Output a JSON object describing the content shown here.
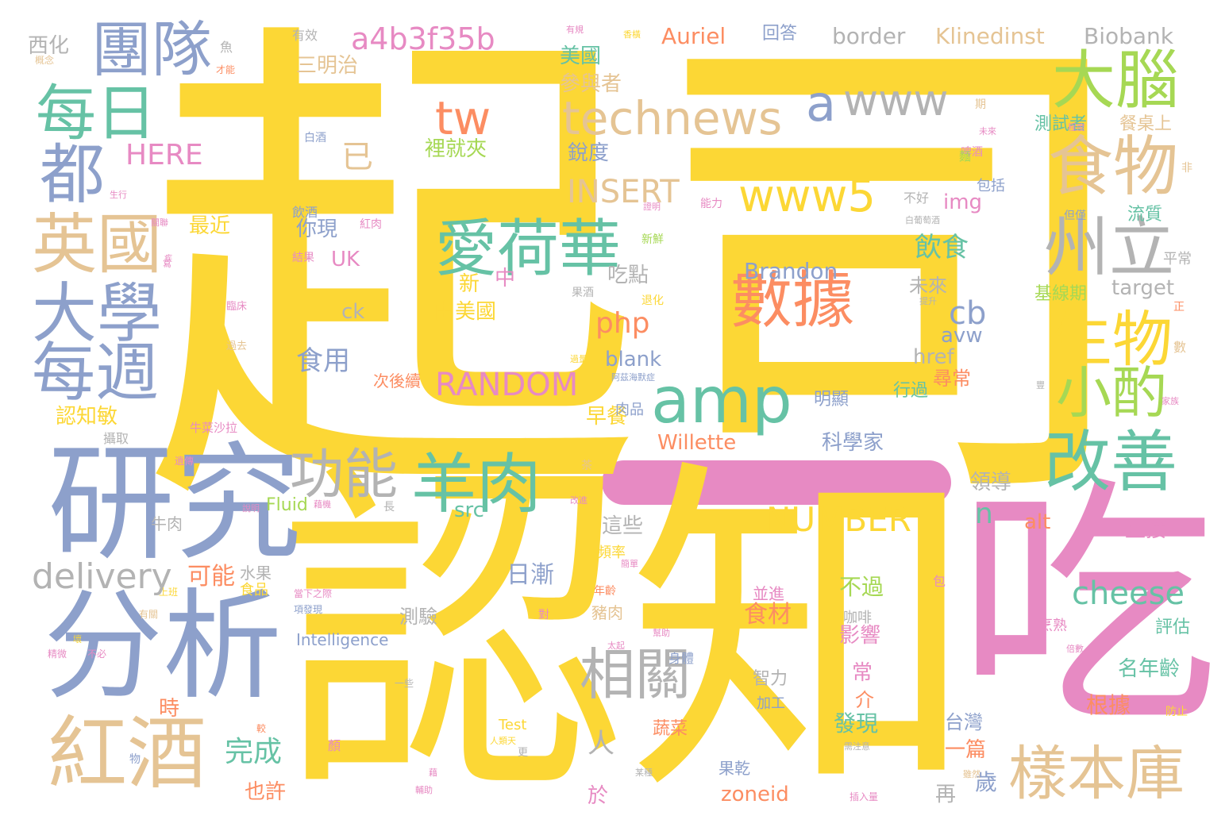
{
  "palette": {
    "yellow": "#fcd735",
    "blue": "#8da0cb",
    "pink": "#e78ac3",
    "green": "#66c2a5",
    "lime": "#a6d854",
    "tan": "#e5c494",
    "gray": "#b3b3b3",
    "orange": "#fc8d62"
  },
  "words": [
    {
      "text": "起司",
      "color": "yellow"
    },
    {
      "text": "認知",
      "color": "yellow"
    },
    {
      "text": "吃",
      "color": "pink"
    },
    {
      "text": "研究",
      "color": "blue"
    },
    {
      "text": "分析",
      "color": "blue"
    },
    {
      "text": "團隊",
      "color": "blue"
    },
    {
      "text": "每日",
      "color": "green"
    },
    {
      "text": "都",
      "color": "blue"
    },
    {
      "text": "英國",
      "color": "tan"
    },
    {
      "text": "大學",
      "color": "blue"
    },
    {
      "text": "每週",
      "color": "blue"
    },
    {
      "text": "紅酒",
      "color": "tan"
    },
    {
      "text": "amp",
      "color": "green"
    },
    {
      "text": "數據",
      "color": "orange"
    },
    {
      "text": "愛荷華",
      "color": "green"
    },
    {
      "text": "羊肉",
      "color": "green"
    },
    {
      "text": "功能",
      "color": "gray"
    },
    {
      "text": "相關",
      "color": "gray"
    },
    {
      "text": "technews",
      "color": "tan"
    },
    {
      "text": "www",
      "color": "gray"
    },
    {
      "text": "a",
      "color": "blue"
    },
    {
      "text": "www5",
      "color": "yellow"
    },
    {
      "text": "tw",
      "color": "orange"
    },
    {
      "text": "a4b3f35b",
      "color": "pink"
    },
    {
      "text": "大腦",
      "color": "lime"
    },
    {
      "text": "食物",
      "color": "tan"
    },
    {
      "text": "州立",
      "color": "gray"
    },
    {
      "text": "生物",
      "color": "yellow"
    },
    {
      "text": "小酌",
      "color": "lime"
    },
    {
      "text": "改善",
      "color": "green"
    },
    {
      "text": "樣本庫",
      "color": "tan"
    },
    {
      "text": "cheese",
      "color": "green"
    },
    {
      "text": "delivery",
      "color": "gray"
    },
    {
      "text": "NUMBER",
      "color": "yellow"
    },
    {
      "text": "RANDOM",
      "color": "pink"
    },
    {
      "text": "INSERT",
      "color": "tan"
    },
    {
      "text": "HERE",
      "color": "pink"
    },
    {
      "text": "php",
      "color": "orange"
    },
    {
      "text": "Brandon",
      "color": "blue"
    },
    {
      "text": "Willette",
      "color": "orange"
    },
    {
      "text": "Auriel",
      "color": "orange"
    },
    {
      "text": "border",
      "color": "gray"
    },
    {
      "text": "Klinedinst",
      "color": "tan"
    },
    {
      "text": "Biobank",
      "color": "gray"
    },
    {
      "text": "已",
      "color": "tan"
    },
    {
      "text": "cb",
      "color": "blue"
    },
    {
      "text": "n",
      "color": "green"
    },
    {
      "text": "img",
      "color": "pink"
    },
    {
      "text": "UK",
      "color": "pink"
    },
    {
      "text": "ck",
      "color": "gray"
    },
    {
      "text": "src",
      "color": "green"
    },
    {
      "text": "alt",
      "color": "orange"
    },
    {
      "text": "blank",
      "color": "blue"
    },
    {
      "text": "href",
      "color": "gray"
    },
    {
      "text": "avw",
      "color": "blue"
    },
    {
      "text": "target",
      "color": "gray"
    },
    {
      "text": "zoneid",
      "color": "orange"
    },
    {
      "text": "Fluid",
      "color": "lime"
    },
    {
      "text": "Intelligence",
      "color": "blue"
    },
    {
      "text": "Test",
      "color": "yellow"
    },
    {
      "text": "人",
      "color": "gray"
    },
    {
      "text": "三明治",
      "color": "tan"
    },
    {
      "text": "美國",
      "color": "green"
    },
    {
      "text": "參與者",
      "color": "tan"
    },
    {
      "text": "回答",
      "color": "blue"
    },
    {
      "text": "西化",
      "color": "gray"
    },
    {
      "text": "銳度",
      "color": "blue"
    },
    {
      "text": "裡就夾",
      "color": "lime"
    },
    {
      "text": "最近",
      "color": "yellow"
    },
    {
      "text": "你現",
      "color": "blue"
    },
    {
      "text": "飲食",
      "color": "green"
    },
    {
      "text": "吃點",
      "color": "gray"
    },
    {
      "text": "未來",
      "color": "gray"
    },
    {
      "text": "由美國",
      "color": "yellow"
    },
    {
      "text": "食用",
      "color": "blue"
    },
    {
      "text": "中",
      "color": "pink"
    },
    {
      "text": "新",
      "color": "yellow"
    },
    {
      "text": "測試者",
      "color": "green"
    },
    {
      "text": "餐桌上",
      "color": "tan"
    },
    {
      "text": "流質",
      "color": "green"
    },
    {
      "text": "基線期",
      "color": "lime"
    },
    {
      "text": "尋常",
      "color": "orange"
    },
    {
      "text": "行過",
      "color": "green"
    },
    {
      "text": "明顯",
      "color": "blue"
    },
    {
      "text": "科學家",
      "color": "blue"
    },
    {
      "text": "早餐",
      "color": "yellow"
    },
    {
      "text": "認知敏",
      "color": "yellow"
    },
    {
      "text": "可能",
      "color": "orange"
    },
    {
      "text": "日漸",
      "color": "blue"
    },
    {
      "text": "這些",
      "color": "gray"
    },
    {
      "text": "測驗",
      "color": "gray"
    },
    {
      "text": "領導",
      "color": "gray"
    },
    {
      "text": "直接",
      "color": "pink"
    },
    {
      "text": "名年齡",
      "color": "green"
    },
    {
      "text": "評估",
      "color": "green"
    },
    {
      "text": "不過",
      "color": "lime"
    },
    {
      "text": "影響",
      "color": "pink"
    },
    {
      "text": "常",
      "color": "pink"
    },
    {
      "text": "介",
      "color": "orange"
    },
    {
      "text": "發現",
      "color": "green"
    },
    {
      "text": "食材",
      "color": "orange"
    },
    {
      "text": "智力",
      "color": "gray"
    },
    {
      "text": "加工",
      "color": "blue"
    },
    {
      "text": "根據",
      "color": "orange"
    },
    {
      "text": "台灣",
      "color": "blue"
    },
    {
      "text": "一篇",
      "color": "orange"
    },
    {
      "text": "歲",
      "color": "blue"
    },
    {
      "text": "再",
      "color": "gray"
    },
    {
      "text": "完成",
      "color": "green"
    },
    {
      "text": "也許",
      "color": "orange"
    },
    {
      "text": "時",
      "color": "orange"
    },
    {
      "text": "於",
      "color": "pink"
    },
    {
      "text": "果乾",
      "color": "blue"
    },
    {
      "text": "蔬菜",
      "color": "orange"
    },
    {
      "text": "次後續",
      "color": "orange"
    },
    {
      "text": "咖啡",
      "color": "gray"
    },
    {
      "text": "並進",
      "color": "pink"
    },
    {
      "text": "豬肉",
      "color": "tan"
    },
    {
      "text": "水果",
      "color": "gray"
    },
    {
      "text": "食品",
      "color": "yellow"
    },
    {
      "text": "牛肉",
      "color": "gray"
    },
    {
      "text": "身體",
      "color": "blue"
    },
    {
      "text": "平常",
      "color": "gray"
    },
    {
      "text": "不好",
      "color": "gray"
    },
    {
      "text": "包括",
      "color": "blue"
    },
    {
      "text": "肉品",
      "color": "blue"
    },
    {
      "text": "烹熟",
      "color": "pink"
    },
    {
      "text": "頻率",
      "color": "yellow"
    },
    {
      "text": "年齡",
      "color": "orange"
    },
    {
      "text": "攝取",
      "color": "gray"
    },
    {
      "text": "有效",
      "color": "gray"
    },
    {
      "text": "魚",
      "color": "gray"
    },
    {
      "text": "牛菜沙拉",
      "color": "pink"
    },
    {
      "text": "飲酒",
      "color": "blue"
    },
    {
      "text": "紅肉",
      "color": "pink"
    },
    {
      "text": "結果",
      "color": "pink"
    },
    {
      "text": "新鮮",
      "color": "lime"
    },
    {
      "text": "臨床",
      "color": "pink"
    },
    {
      "text": "過去",
      "color": "tan"
    },
    {
      "text": "退化",
      "color": "yellow"
    },
    {
      "text": "果酒",
      "color": "gray"
    },
    {
      "text": "啤酒",
      "color": "pink"
    },
    {
      "text": "白葡萄酒",
      "color": "gray"
    },
    {
      "text": "能力",
      "color": "pink"
    },
    {
      "text": "白酒",
      "color": "blue"
    },
    {
      "text": "但僅",
      "color": "blue"
    },
    {
      "text": "阿茲海默症",
      "color": "blue"
    },
    {
      "text": "正",
      "color": "orange"
    },
    {
      "text": "數",
      "color": "tan"
    },
    {
      "text": "期",
      "color": "tan"
    },
    {
      "text": "麵",
      "color": "lime"
    },
    {
      "text": "非",
      "color": "tan"
    },
    {
      "text": "包",
      "color": "pink"
    },
    {
      "text": "長",
      "color": "gray"
    },
    {
      "text": "茶",
      "color": "tan"
    },
    {
      "text": "物",
      "color": "blue"
    },
    {
      "text": "較",
      "color": "orange"
    },
    {
      "text": "顏",
      "color": "pink"
    },
    {
      "text": "更",
      "color": "gray"
    },
    {
      "text": "對",
      "color": "pink"
    },
    {
      "text": "防止",
      "color": "yellow"
    },
    {
      "text": "不必",
      "color": "pink"
    },
    {
      "text": "精微",
      "color": "pink"
    },
    {
      "text": "有關",
      "color": "tan"
    },
    {
      "text": "遺傳",
      "color": "pink"
    },
    {
      "text": "才能",
      "color": "orange"
    },
    {
      "text": "概念",
      "color": "tan"
    },
    {
      "text": "藉機",
      "color": "pink"
    },
    {
      "text": "幫助",
      "color": "pink"
    },
    {
      "text": "關聯",
      "color": "pink"
    },
    {
      "text": "一些",
      "color": "gray"
    },
    {
      "text": "當下之際",
      "color": "pink"
    },
    {
      "text": "項發現",
      "color": "blue"
    },
    {
      "text": "上班",
      "color": "yellow"
    },
    {
      "text": "改進",
      "color": "pink"
    },
    {
      "text": "輔助",
      "color": "pink"
    },
    {
      "text": "太起",
      "color": "pink"
    },
    {
      "text": "插入量",
      "color": "pink"
    },
    {
      "text": "人類天",
      "color": "yellow"
    },
    {
      "text": "需注意",
      "color": "gray"
    },
    {
      "text": "未來",
      "color": "pink"
    },
    {
      "text": "簡單",
      "color": "pink"
    },
    {
      "text": "證明",
      "color": "pink"
    },
    {
      "text": "提升",
      "color": "gray"
    },
    {
      "text": "生行",
      "color": "pink"
    },
    {
      "text": "寫",
      "color": "pink"
    },
    {
      "text": "說明",
      "color": "pink"
    },
    {
      "text": "藉",
      "color": "pink"
    },
    {
      "text": "過量",
      "color": "yellow"
    },
    {
      "text": "壞",
      "color": "yellow"
    },
    {
      "text": "雖然",
      "color": "tan"
    },
    {
      "text": "某種",
      "color": "gray"
    },
    {
      "text": "程度",
      "color": "pink"
    },
    {
      "text": "倍數",
      "color": "pink"
    },
    {
      "text": "家族",
      "color": "pink"
    },
    {
      "text": "豐",
      "color": "gray"
    },
    {
      "text": "香橫",
      "color": "yellow"
    },
    {
      "text": "有規",
      "color": "pink"
    },
    {
      "text": "疾",
      "color": "pink"
    }
  ]
}
